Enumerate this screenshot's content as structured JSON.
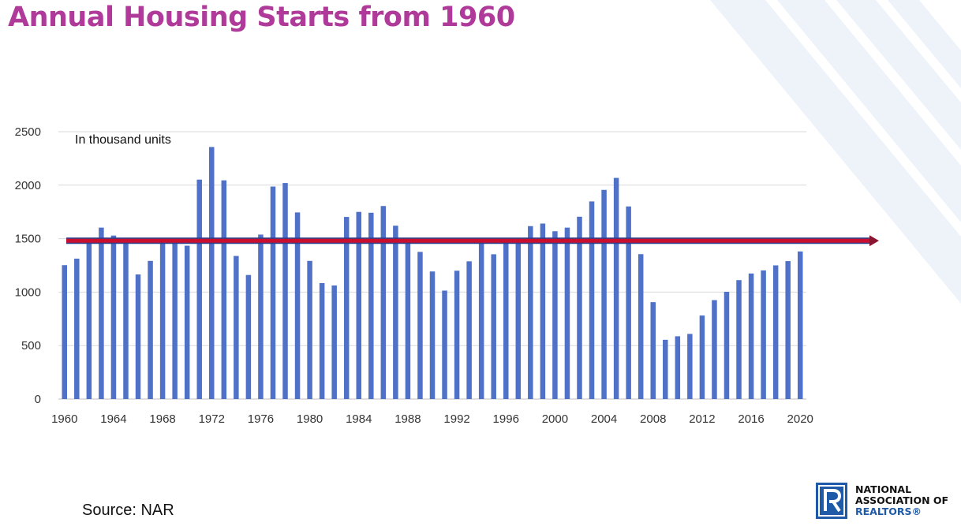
{
  "title": "Annual Housing Starts from 1960",
  "source": "Source: NAR",
  "logo": {
    "line1": "NATIONAL",
    "line2": "ASSOCIATION OF",
    "line3": "REALTORS®"
  },
  "colors": {
    "title": "#b03a9a",
    "bar": "#4f72c8",
    "average_line": "#c8102e",
    "logo_blue": "#1e5aa8"
  },
  "chart_data": {
    "type": "bar",
    "annotation": "In thousand units",
    "ylim": [
      0,
      2500
    ],
    "yticks": [
      0,
      500,
      1000,
      1500,
      2000,
      2500
    ],
    "xticks": [
      "1960",
      "1964",
      "1968",
      "1972",
      "1976",
      "1980",
      "1984",
      "1988",
      "1992",
      "1996",
      "2000",
      "2004",
      "2008",
      "2012",
      "2016",
      "2020"
    ],
    "grid": true,
    "categories": [
      1960,
      1961,
      1962,
      1963,
      1964,
      1965,
      1966,
      1967,
      1968,
      1969,
      1970,
      1971,
      1972,
      1973,
      1974,
      1975,
      1976,
      1977,
      1978,
      1979,
      1980,
      1981,
      1982,
      1983,
      1984,
      1985,
      1986,
      1987,
      1988,
      1989,
      1990,
      1991,
      1992,
      1993,
      1994,
      1995,
      1996,
      1997,
      1998,
      1999,
      2000,
      2001,
      2002,
      2003,
      2004,
      2005,
      2006,
      2007,
      2008,
      2009,
      2010,
      2011,
      2012,
      2013,
      2014,
      2015,
      2016,
      2017,
      2018,
      2019,
      2020
    ],
    "values": [
      1252,
      1313,
      1463,
      1603,
      1529,
      1473,
      1165,
      1292,
      1508,
      1467,
      1434,
      2052,
      2357,
      2045,
      1338,
      1160,
      1538,
      1987,
      2020,
      1745,
      1292,
      1084,
      1062,
      1703,
      1750,
      1742,
      1805,
      1621,
      1488,
      1376,
      1193,
      1014,
      1200,
      1288,
      1457,
      1354,
      1477,
      1474,
      1617,
      1641,
      1569,
      1603,
      1705,
      1848,
      1956,
      2068,
      1801,
      1355,
      906,
      554,
      587,
      609,
      781,
      925,
      1003,
      1112,
      1174,
      1203,
      1250,
      1290,
      1380
    ],
    "reference_line": {
      "value": 1480,
      "arrow": "right"
    }
  }
}
